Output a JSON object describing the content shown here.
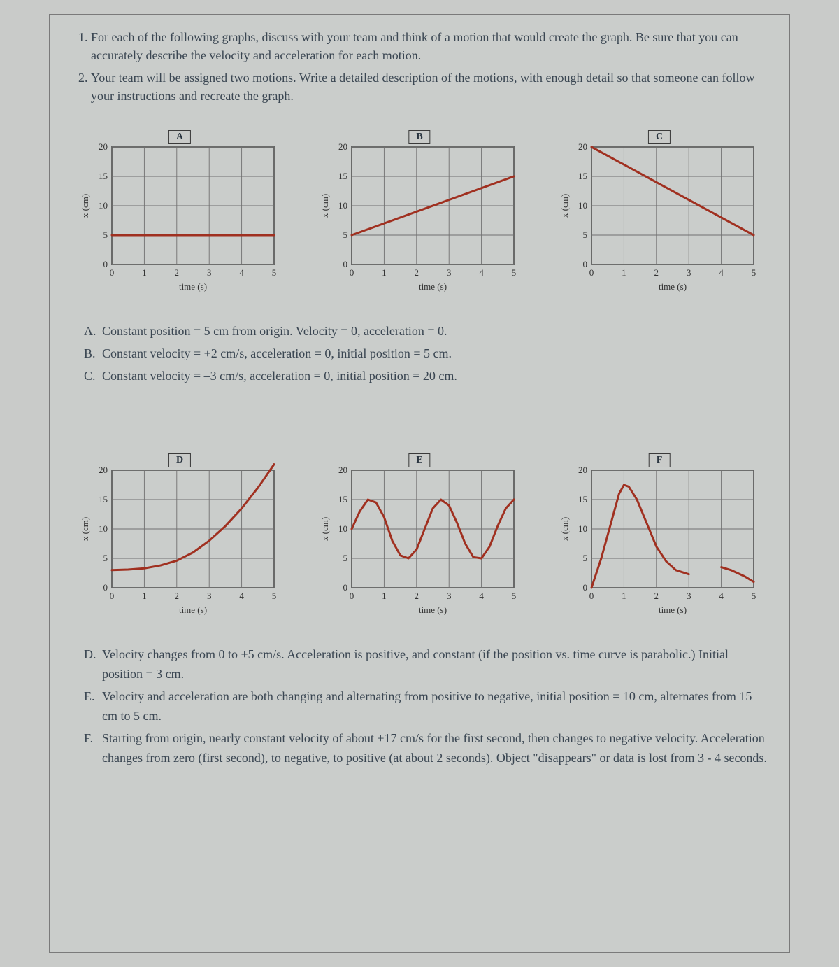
{
  "instructions": [
    "For each of the following graphs, discuss with your team and think of a motion that would create the graph. Be sure that you can accurately describe the velocity and acceleration for each motion.",
    "Your team will be assigned two motions. Write a detailed description of the motions, with enough detail so that someone can follow your instructions and recreate the graph."
  ],
  "axes": {
    "xlabel": "time (s)",
    "ylabel": "x (cm)",
    "xlim": [
      0,
      5
    ],
    "ylim": [
      0,
      20
    ],
    "xticks": [
      0,
      1,
      2,
      3,
      4,
      5
    ],
    "yticks": [
      0,
      5,
      10,
      15,
      20
    ],
    "label_fontsize": 13,
    "tick_fontsize": 13,
    "grid_color": "#707070",
    "axis_color": "#2a2a2a",
    "background": "#c9cbc9",
    "line_color": "#a03020",
    "line_width": 3
  },
  "graphs_top": [
    {
      "label": "A",
      "type": "line",
      "points": [
        [
          0,
          5
        ],
        [
          5,
          5
        ]
      ]
    },
    {
      "label": "B",
      "type": "line",
      "points": [
        [
          0,
          5
        ],
        [
          5,
          15
        ]
      ]
    },
    {
      "label": "C",
      "type": "line",
      "points": [
        [
          0,
          20
        ],
        [
          5,
          5
        ]
      ]
    }
  ],
  "graphs_bottom": [
    {
      "label": "D",
      "type": "curve",
      "points": [
        [
          0,
          3
        ],
        [
          0.5,
          3.1
        ],
        [
          1,
          3.3
        ],
        [
          1.5,
          3.8
        ],
        [
          2,
          4.6
        ],
        [
          2.5,
          6
        ],
        [
          3,
          8
        ],
        [
          3.5,
          10.5
        ],
        [
          4,
          13.5
        ],
        [
          4.5,
          17
        ],
        [
          5,
          21
        ]
      ]
    },
    {
      "label": "E",
      "type": "curve",
      "points": [
        [
          0,
          10
        ],
        [
          0.25,
          13
        ],
        [
          0.5,
          15
        ],
        [
          0.75,
          14.5
        ],
        [
          1,
          12
        ],
        [
          1.25,
          8
        ],
        [
          1.5,
          5.5
        ],
        [
          1.75,
          5
        ],
        [
          2,
          6.5
        ],
        [
          2.25,
          10
        ],
        [
          2.5,
          13.5
        ],
        [
          2.75,
          15
        ],
        [
          3,
          14
        ],
        [
          3.25,
          11
        ],
        [
          3.5,
          7.5
        ],
        [
          3.75,
          5.2
        ],
        [
          4,
          5
        ],
        [
          4.25,
          7
        ],
        [
          4.5,
          10.5
        ],
        [
          4.75,
          13.5
        ],
        [
          5,
          15
        ]
      ]
    },
    {
      "label": "F",
      "type": "multi",
      "segments": [
        {
          "points": [
            [
              0,
              0
            ],
            [
              0.3,
              5
            ],
            [
              0.6,
              11
            ],
            [
              0.85,
              16
            ],
            [
              1,
              17.5
            ],
            [
              1.15,
              17.2
            ],
            [
              1.4,
              15
            ],
            [
              1.7,
              11
            ],
            [
              2,
              7
            ],
            [
              2.3,
              4.5
            ],
            [
              2.6,
              3
            ],
            [
              3,
              2.3
            ]
          ]
        },
        {
          "points": [
            [
              4,
              3.5
            ],
            [
              4.3,
              3
            ],
            [
              4.7,
              2
            ],
            [
              5,
              1
            ]
          ]
        }
      ]
    }
  ],
  "answers_top": [
    {
      "letter": "A.",
      "text": "Constant position = 5 cm from origin.  Velocity = 0, acceleration = 0."
    },
    {
      "letter": "B.",
      "text": "Constant velocity = +2 cm/s, acceleration = 0,  initial position = 5 cm."
    },
    {
      "letter": "C.",
      "text": "Constant velocity = –3 cm/s, acceleration = 0, initial position = 20 cm."
    }
  ],
  "answers_bottom": [
    {
      "letter": "D.",
      "text": "Velocity changes from 0 to +5 cm/s.  Acceleration is positive, and constant (if the position vs. time curve is parabolic.) Initial position = 3 cm."
    },
    {
      "letter": "E.",
      "text": "Velocity and acceleration are both changing and alternating from positive to negative, initial position = 10 cm, alternates from 15 cm to 5 cm."
    },
    {
      "letter": "F.",
      "text": "Starting from origin, nearly constant velocity of about +17 cm/s for the first second, then changes to negative velocity.  Acceleration changes from zero (first second), to negative, to positive (at about 2 seconds).  Object \"disappears\" or data is lost from 3 - 4 seconds."
    }
  ]
}
